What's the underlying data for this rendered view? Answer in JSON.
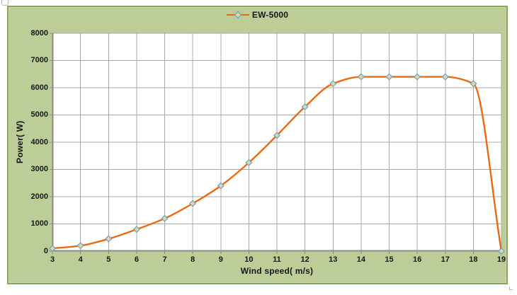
{
  "window": {
    "background": "#ffffff"
  },
  "chart": {
    "panel_bg": "#bccd97",
    "panel_border": "#8aa45a",
    "plot_bg": "#ffffff",
    "grid_color": "#a8a8a8",
    "axis_color": "#8a8a8a",
    "series_color": "#ea6a12",
    "marker_fill": "#cfdbb2",
    "marker_stroke": "#7f9db4",
    "text_color": "#161616"
  },
  "chart_data": {
    "type": "line",
    "title": "",
    "xlabel": "Wind speed( m/s)",
    "ylabel": "Power( W)",
    "legend_position": "top",
    "grid": true,
    "smooth": true,
    "marker": "diamond",
    "xlim": [
      3,
      19
    ],
    "ylim": [
      0,
      8000
    ],
    "xticks": [
      3,
      4,
      5,
      6,
      7,
      8,
      9,
      10,
      11,
      12,
      13,
      14,
      15,
      16,
      17,
      18,
      19
    ],
    "yticks": [
      0,
      1000,
      2000,
      3000,
      4000,
      5000,
      6000,
      7000,
      8000
    ],
    "x": [
      3,
      4,
      5,
      6,
      7,
      8,
      9,
      10,
      11,
      12,
      13,
      14,
      15,
      16,
      17,
      18,
      19
    ],
    "series": [
      {
        "name": "EW-5000",
        "values": [
          100,
          200,
          450,
          800,
          1200,
          1750,
          2400,
          3250,
          4250,
          5300,
          6150,
          6400,
          6400,
          6400,
          6400,
          6150,
          0
        ]
      }
    ]
  }
}
